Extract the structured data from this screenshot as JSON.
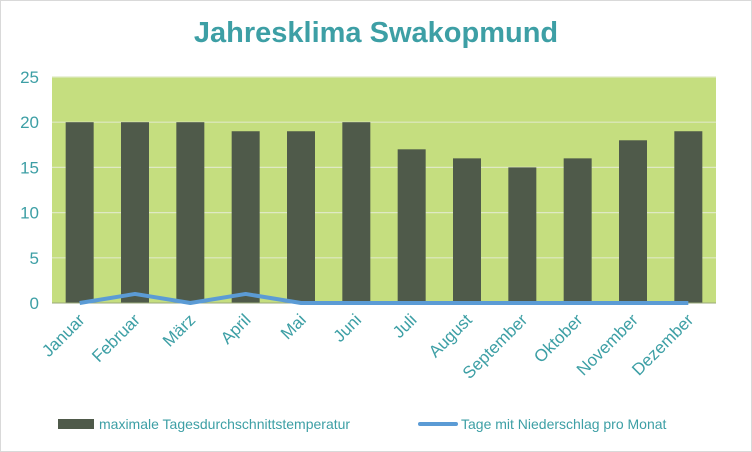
{
  "chart_data": {
    "type": "bar",
    "title": "Jahresklima Swakopmund",
    "categories": [
      "Januar",
      "Februar",
      "März",
      "April",
      "Mai",
      "Juni",
      "Juli",
      "August",
      "September",
      "Oktober",
      "November",
      "Dezember"
    ],
    "series": [
      {
        "name": "maximale Tagesdurchschnittstemperatur",
        "type": "bar",
        "color": "#4f5a4a",
        "values": [
          20,
          20,
          20,
          19,
          19,
          20,
          17,
          16,
          15,
          16,
          18,
          19
        ]
      },
      {
        "name": "Tage mit Niederschlag pro Monat",
        "type": "line",
        "color": "#5b9bd5",
        "values": [
          0,
          1,
          0,
          1,
          0,
          0,
          0,
          0,
          0,
          0,
          0,
          0
        ]
      }
    ],
    "ylim": [
      0,
      25
    ],
    "yticks": [
      0,
      5,
      10,
      15,
      20,
      25
    ],
    "grid": true,
    "legend": "bottom",
    "plot_background": "#c5de7f",
    "text_color": "#3d9fa5"
  }
}
